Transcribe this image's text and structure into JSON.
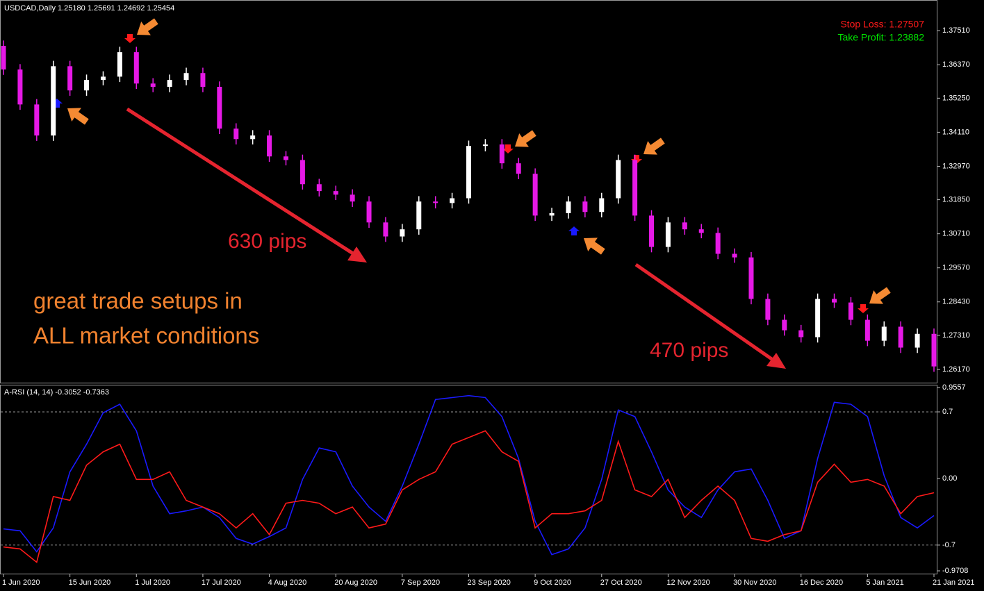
{
  "chart_data": [
    {
      "type": "candlestick",
      "title": "USDCAD,Daily  1.25180 1.25691 1.24692 1.25454",
      "up_color": "#ffffff",
      "down_color": "#e619e6",
      "x": [
        0,
        3,
        6,
        9,
        12,
        15,
        18,
        21,
        24,
        27,
        30,
        33,
        36,
        39,
        42,
        45,
        48,
        51,
        54,
        57,
        60,
        63,
        66,
        69,
        72,
        75,
        78,
        81,
        84,
        87,
        90,
        93,
        96,
        99,
        102,
        105,
        108,
        111,
        114,
        117,
        120,
        123,
        126,
        129,
        132,
        135,
        138,
        141,
        144,
        147,
        150,
        153,
        156,
        159,
        162,
        165,
        168
      ],
      "xlim": [
        0,
        168
      ],
      "open": [
        1.37,
        1.3621,
        1.3504,
        1.34,
        1.3632,
        1.3551,
        1.3586,
        1.3597,
        1.3679,
        1.3574,
        1.3563,
        1.3586,
        1.3609,
        1.3563,
        1.3423,
        1.3388,
        1.34,
        1.333,
        1.3318,
        1.3237,
        1.3214,
        1.3202,
        1.3179,
        1.3109,
        1.3062,
        1.3086,
        1.3179,
        1.3174,
        1.319,
        1.3365,
        1.337,
        1.3307,
        1.3272,
        1.3132,
        1.314,
        1.3179,
        1.3144,
        1.319,
        1.3318,
        1.3132,
        1.3027,
        1.3109,
        1.3086,
        1.3074,
        1.3004,
        1.2992,
        1.2853,
        1.2783,
        1.2748,
        1.2725,
        1.2853,
        1.2841,
        1.2783,
        1.2713,
        1.276,
        1.269,
        1.2736
      ],
      "high": [
        1.3718,
        1.3639,
        1.3522,
        1.365,
        1.365,
        1.3604,
        1.3615,
        1.3697,
        1.3697,
        1.3592,
        1.3604,
        1.3627,
        1.3627,
        1.3581,
        1.3441,
        1.3418,
        1.3418,
        1.3348,
        1.3336,
        1.3255,
        1.3232,
        1.322,
        1.3197,
        1.3127,
        1.3104,
        1.3197,
        1.3197,
        1.3208,
        1.3383,
        1.3388,
        1.3388,
        1.3325,
        1.329,
        1.3158,
        1.3197,
        1.3197,
        1.3208,
        1.3336,
        1.3336,
        1.315,
        1.3127,
        1.3127,
        1.3104,
        1.3092,
        1.3022,
        1.301,
        1.2871,
        1.2801,
        1.2766,
        1.2871,
        1.2871,
        1.2859,
        1.2801,
        1.2778,
        1.2778,
        1.2754,
        1.2754
      ],
      "low": [
        1.3603,
        1.3486,
        1.3382,
        1.3382,
        1.3533,
        1.3533,
        1.3568,
        1.3579,
        1.3556,
        1.3545,
        1.3545,
        1.3568,
        1.3545,
        1.3405,
        1.337,
        1.337,
        1.3312,
        1.33,
        1.3219,
        1.3196,
        1.3184,
        1.3161,
        1.3091,
        1.3044,
        1.3044,
        1.3068,
        1.3156,
        1.3156,
        1.3172,
        1.3347,
        1.3289,
        1.3254,
        1.3114,
        1.3114,
        1.3122,
        1.3126,
        1.3126,
        1.3172,
        1.3114,
        1.3009,
        1.3009,
        1.3068,
        1.3056,
        1.2986,
        1.2974,
        1.2835,
        1.2765,
        1.273,
        1.2707,
        1.2707,
        1.2823,
        1.2765,
        1.2695,
        1.2695,
        1.2672,
        1.2672,
        1.2609
      ],
      "close": [
        1.3621,
        1.3504,
        1.34,
        1.3632,
        1.3551,
        1.3586,
        1.3597,
        1.3679,
        1.3574,
        1.3563,
        1.3586,
        1.3609,
        1.3563,
        1.3423,
        1.3388,
        1.34,
        1.333,
        1.3318,
        1.3237,
        1.3214,
        1.3202,
        1.3179,
        1.3109,
        1.3062,
        1.3086,
        1.3179,
        1.3174,
        1.319,
        1.3365,
        1.337,
        1.3307,
        1.3272,
        1.3132,
        1.314,
        1.3179,
        1.3144,
        1.319,
        1.3318,
        1.3132,
        1.3027,
        1.3109,
        1.3086,
        1.3074,
        1.3004,
        1.2992,
        1.2853,
        1.2783,
        1.2748,
        1.2725,
        1.2853,
        1.2841,
        1.2783,
        1.2713,
        1.276,
        1.269,
        1.2736,
        1.2627
      ],
      "ylim": [
        1.2575,
        1.3842
      ],
      "yticks": [
        {
          "value": 1.3751,
          "label": "1.37510"
        },
        {
          "value": 1.3637,
          "label": "1.36370"
        },
        {
          "value": 1.3525,
          "label": "1.35250"
        },
        {
          "value": 1.3411,
          "label": "1.34110"
        },
        {
          "value": 1.3297,
          "label": "1.32970"
        },
        {
          "value": 1.3185,
          "label": "1.31850"
        },
        {
          "value": 1.3071,
          "label": "1.30710"
        },
        {
          "value": 1.2957,
          "label": "1.29570"
        },
        {
          "value": 1.2843,
          "label": "1.28430"
        },
        {
          "value": 1.2731,
          "label": "1.27310"
        },
        {
          "value": 1.2617,
          "label": "1.26170"
        }
      ],
      "annotations": [
        {
          "text": "Stop Loss: 1.27507",
          "color": "#ff1a1a"
        },
        {
          "text": "Take Profit: 1.23882",
          "color": "#00e600"
        },
        {
          "text": "630 pips",
          "color": "#e5242f"
        },
        {
          "text": "470 pips",
          "color": "#e5242f"
        },
        {
          "text": "great trade setups in",
          "color": "#f0822f"
        },
        {
          "text": "ALL market conditions",
          "color": "#f0822f"
        }
      ]
    },
    {
      "type": "line",
      "title": "A-RSI (14, 14) -0.3052 -0.7363",
      "x": [
        0,
        3,
        6,
        9,
        12,
        15,
        18,
        21,
        24,
        27,
        30,
        33,
        36,
        39,
        42,
        45,
        48,
        51,
        54,
        57,
        60,
        63,
        66,
        69,
        72,
        75,
        78,
        81,
        84,
        87,
        90,
        93,
        96,
        99,
        102,
        105,
        108,
        111,
        114,
        117,
        120,
        123,
        126,
        129,
        132,
        135,
        138,
        141,
        144,
        147,
        150,
        153,
        156,
        159,
        162,
        165,
        168
      ],
      "xlim": [
        0,
        168
      ],
      "series": [
        {
          "color": "#1a1aff",
          "values": [
            -0.53,
            -0.55,
            -0.77,
            -0.52,
            0.07,
            0.36,
            0.69,
            0.78,
            0.5,
            -0.08,
            -0.37,
            -0.34,
            -0.3,
            -0.41,
            -0.63,
            -0.69,
            -0.61,
            -0.52,
            -0.01,
            0.32,
            0.28,
            -0.08,
            -0.3,
            -0.45,
            -0.08,
            0.36,
            0.83,
            0.85,
            0.87,
            0.85,
            0.65,
            0.21,
            -0.45,
            -0.8,
            -0.74,
            -0.52,
            -0.01,
            0.72,
            0.65,
            0.28,
            -0.12,
            -0.3,
            -0.41,
            -0.12,
            0.07,
            0.1,
            -0.23,
            -0.63,
            -0.55,
            0.21,
            0.8,
            0.78,
            0.65,
            0.03,
            -0.41,
            -0.52,
            -0.39
          ]
        },
        {
          "color": "#ff1a1a",
          "values": [
            -0.72,
            -0.74,
            -0.88,
            -0.19,
            -0.23,
            0.14,
            0.28,
            0.36,
            -0.01,
            -0.01,
            0.07,
            -0.23,
            -0.3,
            -0.37,
            -0.52,
            -0.37,
            -0.59,
            -0.26,
            -0.23,
            -0.26,
            -0.37,
            -0.3,
            -0.52,
            -0.48,
            -0.12,
            -0.01,
            0.07,
            0.36,
            0.43,
            0.5,
            0.28,
            0.18,
            -0.52,
            -0.37,
            -0.37,
            -0.34,
            -0.23,
            0.39,
            -0.12,
            -0.19,
            -0.01,
            -0.41,
            -0.23,
            -0.08,
            -0.23,
            -0.63,
            -0.66,
            -0.59,
            -0.55,
            -0.04,
            0.15,
            -0.04,
            -0.01,
            -0.08,
            -0.37,
            -0.19,
            -0.15
          ]
        }
      ],
      "ylim": [
        -0.9708,
        0.9557
      ],
      "yticks": [
        0.9557,
        0.7,
        {
          "value": 0,
          "label": "0.00"
        },
        -0.7,
        -0.9708
      ],
      "levels": [
        0.7,
        -0.7
      ],
      "xticks": [
        {
          "value": 0,
          "label": "1 Jun 2020"
        },
        {
          "value": 12,
          "label": "15 Jun 2020"
        },
        {
          "value": 24,
          "label": "1 Jul 2020"
        },
        {
          "value": 36,
          "label": "17 Jul 2020"
        },
        {
          "value": 48,
          "label": "4 Aug 2020"
        },
        {
          "value": 60,
          "label": "20 Aug 2020"
        },
        {
          "value": 72,
          "label": "7 Sep 2020"
        },
        {
          "value": 84,
          "label": "23 Sep 2020"
        },
        {
          "value": 96,
          "label": "9 Oct 2020"
        },
        {
          "value": 108,
          "label": "27 Oct 2020"
        },
        {
          "value": 120,
          "label": "12 Nov 2020"
        },
        {
          "value": 132,
          "label": "30 Nov 2020"
        },
        {
          "value": 144,
          "label": "16 Dec 2020"
        },
        {
          "value": 156,
          "label": "5 Jan 2021"
        },
        {
          "value": 168,
          "label": "21 Jan 2021"
        }
      ]
    }
  ]
}
